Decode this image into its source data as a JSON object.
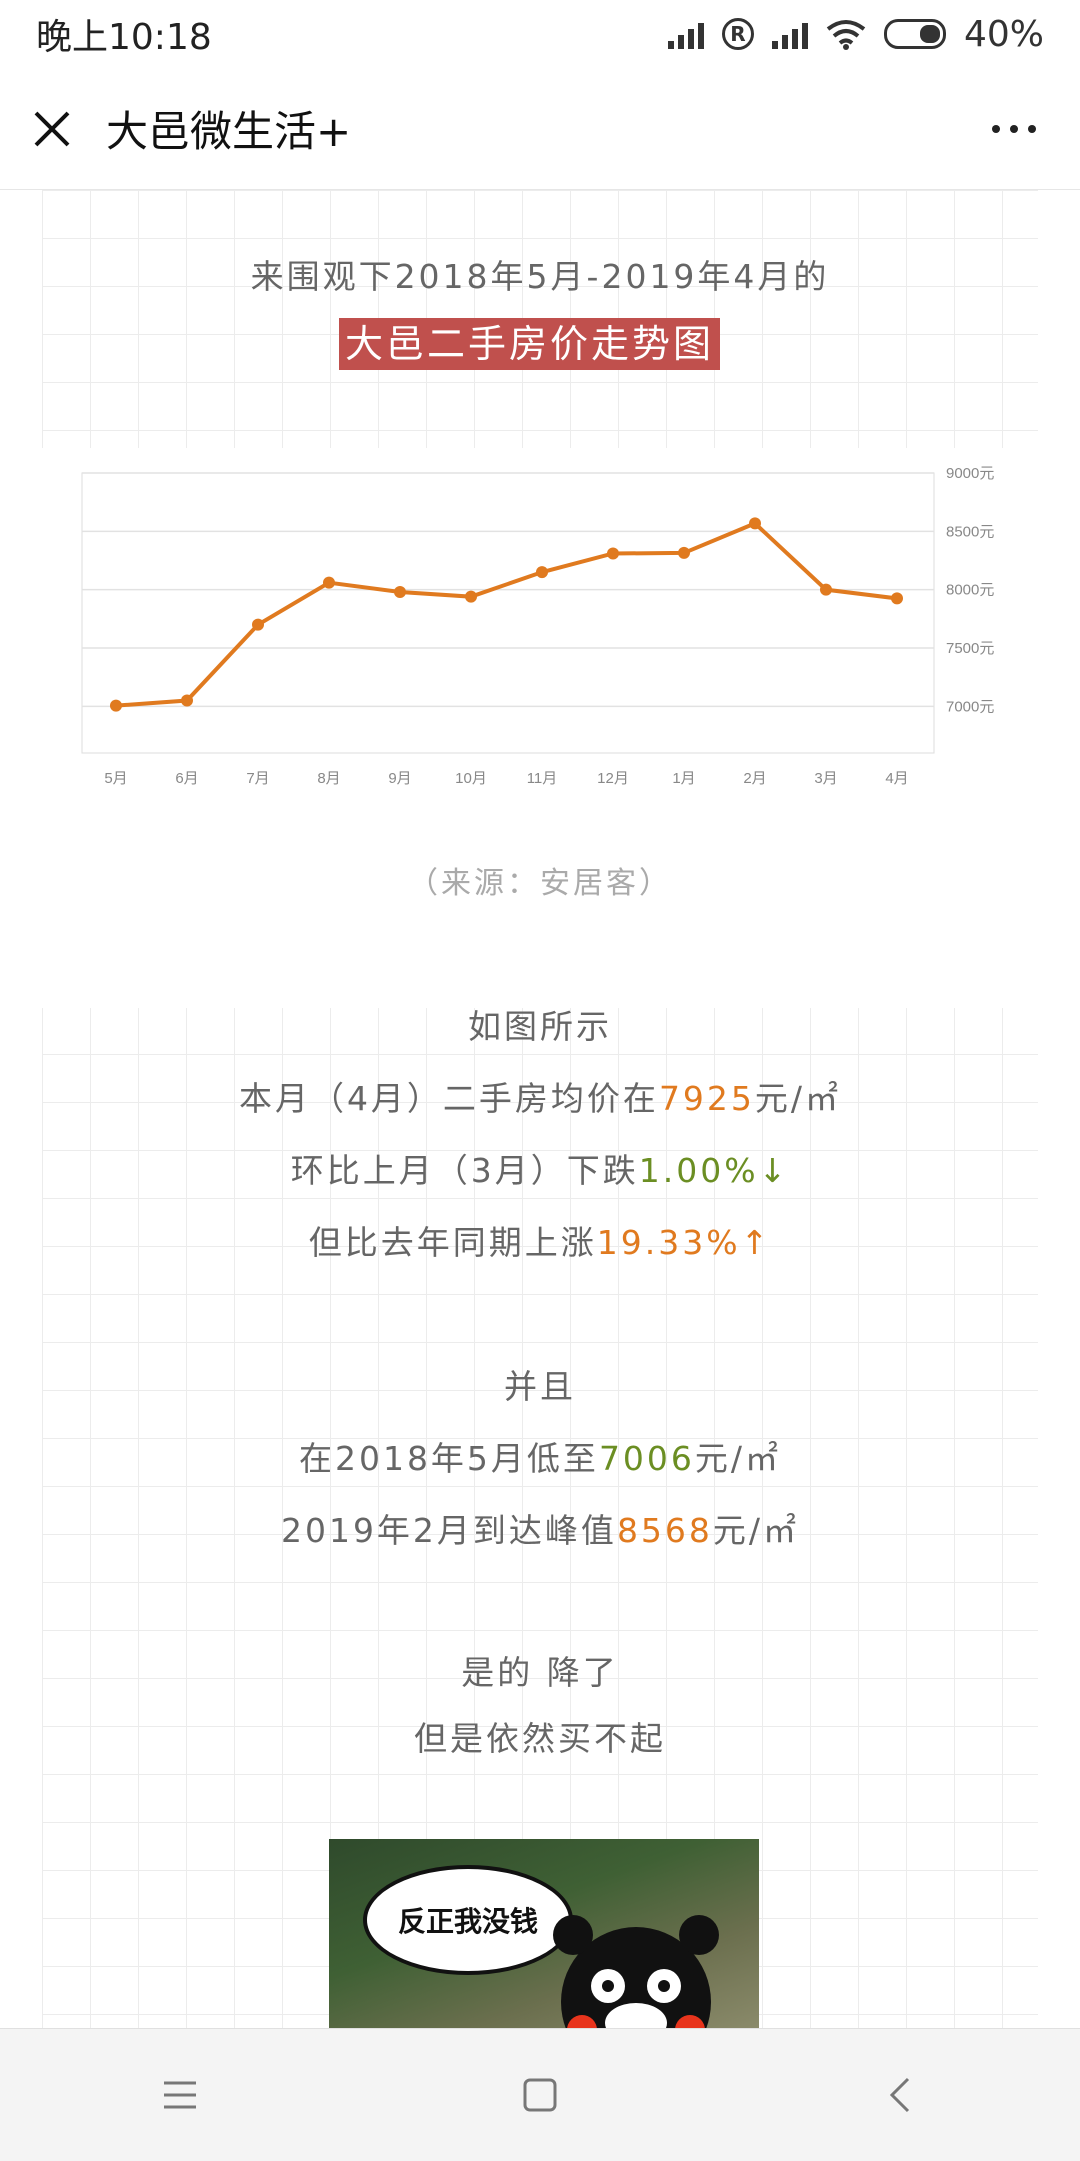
{
  "status_bar": {
    "time": "晚上10:18",
    "battery_text": "40%",
    "icons": [
      "signal-icon",
      "roaming-icon",
      "signal-icon",
      "wifi-icon",
      "battery-icon"
    ]
  },
  "titlebar": {
    "title": "大邑微生活+",
    "close_icon": "close-icon",
    "more_icon": "more-icon"
  },
  "article": {
    "intro": "来围观下2018年5月-2019年4月的",
    "headline": "大邑二手房价走势图",
    "source": "（来源：安居客）",
    "para1": {
      "line1": "如图所示",
      "line2_pre": "本月（4月）二手房均价在",
      "line2_val": "7925",
      "line2_post": "元/㎡",
      "line3_pre": "环比上月（3月）下跌",
      "line3_val": "1.00%",
      "line3_arrow": "↓",
      "line4_pre": "但比去年同期上涨",
      "line4_val": "19.33%",
      "line4_arrow": "↑"
    },
    "para2": {
      "line1": "并且",
      "line2_pre": "在2018年5月低至",
      "line2_val": "7006",
      "line2_post": "元/㎡",
      "line3_pre": "2019年2月到达峰值",
      "line3_val": "8568",
      "line3_post": "元/㎡"
    },
    "para3": {
      "line1": "是的 降了",
      "line2": "但是依然买不起"
    },
    "sticker_text": "反正我没钱",
    "colors": {
      "highlight_bg": "#c0504d",
      "accent_orange": "#e07a1f",
      "accent_green": "#6b8e23"
    }
  },
  "chart_data": {
    "type": "line",
    "categories": [
      "5月",
      "6月",
      "7月",
      "8月",
      "9月",
      "10月",
      "11月",
      "12月",
      "1月",
      "2月",
      "3月",
      "4月"
    ],
    "values": [
      7006,
      7050,
      7700,
      8060,
      7980,
      7940,
      8150,
      8310,
      8315,
      8568,
      8000,
      7925
    ],
    "yticks": [
      "7000元",
      "7500元",
      "8000元",
      "8500元",
      "9000元"
    ],
    "ylim": [
      6600,
      9000
    ],
    "grid": true,
    "color": "#e07a1f",
    "y_axis_position": "right"
  },
  "navbar": {
    "icons": [
      "menu-icon",
      "home-icon",
      "back-icon"
    ]
  }
}
